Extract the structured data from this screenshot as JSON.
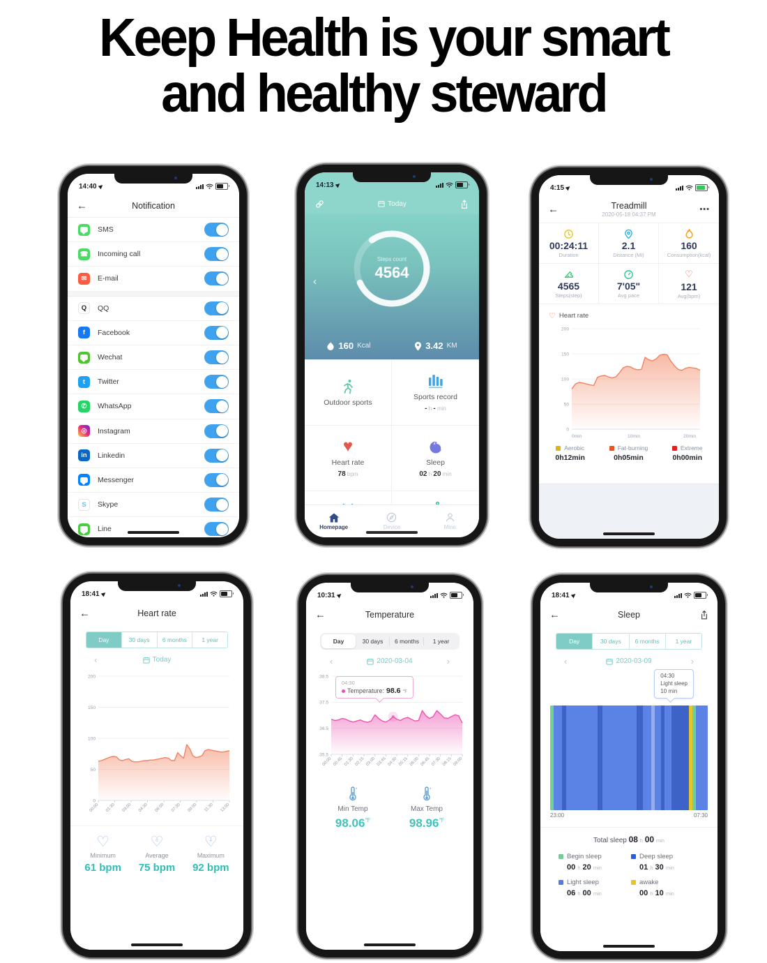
{
  "headline": {
    "line1": "Keep Health  is your smart",
    "line2": "and healthy steward"
  },
  "phones": {
    "notification": {
      "status_time": "14:40",
      "title": "Notification",
      "items": [
        {
          "label": "SMS",
          "icon": "sms-icon",
          "bg": "#4cd964",
          "shape": "bubble",
          "section_break": false
        },
        {
          "label": "Incoming call",
          "icon": "incoming-call-icon",
          "bg": "#4cd964",
          "glyph": "☎",
          "section_break": false
        },
        {
          "label": "E-mail",
          "icon": "email-icon",
          "bg": "#ff5b40",
          "glyph": "✉",
          "section_break": false
        },
        {
          "label": "QQ",
          "icon": "qq-icon",
          "bg": "#ffffff",
          "glyph": "Q",
          "glyph_color": "#222222",
          "section_break": true
        },
        {
          "label": "Facebook",
          "icon": "facebook-icon",
          "bg": "#1877f2",
          "glyph": "f",
          "section_break": false
        },
        {
          "label": "Wechat",
          "icon": "wechat-icon",
          "bg": "#51c332",
          "shape": "bubble",
          "section_break": false
        },
        {
          "label": "Twitter",
          "icon": "twitter-icon",
          "bg": "#1da1f2",
          "glyph": "t",
          "section_break": false
        },
        {
          "label": "WhatsApp",
          "icon": "whatsapp-icon",
          "bg": "#25d366",
          "glyph": "✆",
          "section_break": false
        },
        {
          "label": "Instagram",
          "icon": "instagram-icon",
          "bg": "linear-gradient(45deg,#f9ce34,#ee2a7b,#6228d7)",
          "glyph": "◎",
          "section_break": false
        },
        {
          "label": "Linkedin",
          "icon": "linkedin-icon",
          "bg": "#0a66c2",
          "glyph": "in",
          "section_break": false
        },
        {
          "label": "Messenger",
          "icon": "messenger-icon",
          "bg": "#0084ff",
          "shape": "bubble",
          "section_break": false
        },
        {
          "label": "Skype",
          "icon": "skype-icon",
          "bg": "#ffffff",
          "glyph": "S",
          "glyph_color": "#78bfe8",
          "section_break": false
        },
        {
          "label": "Line",
          "icon": "line-icon",
          "bg": "#4ccc45",
          "shape": "bubble",
          "section_break": false
        }
      ],
      "toggle_color": "#3ea2ef"
    },
    "home": {
      "status_time": "14:13",
      "header_label": "Today",
      "steps_label": "Steps count",
      "steps_value": "4564",
      "kcal_value": "160",
      "kcal_unit": "Kcal",
      "dist_value": "3.42",
      "dist_unit": "KM",
      "cells": [
        {
          "label": "Outdoor sports",
          "icon": "runner-icon"
        },
        {
          "label": "Sports record",
          "icon": "bar-chart-icon",
          "sub_h": "-",
          "sub_hu": "h",
          "sub_m": "-",
          "sub_mu": "min"
        },
        {
          "label": "Heart rate",
          "icon": "heart-icon",
          "value": "78",
          "unit": "bpm"
        },
        {
          "label": "Sleep",
          "icon": "moon-icon",
          "h": "02",
          "hu": "h",
          "m": "20",
          "mu": "min"
        },
        {
          "icon": "alarm-icon"
        },
        {
          "icon": "sedentary-icon"
        }
      ],
      "tabs": [
        {
          "label": "Homepage",
          "icon": "home-icon"
        },
        {
          "label": "Device",
          "icon": "compass-icon"
        },
        {
          "label": "Mine",
          "icon": "person-icon"
        }
      ]
    },
    "treadmill": {
      "status_time": "4:15",
      "title": "Treadmill",
      "subtitle": "2020-05-18 04:37 PM",
      "menu": "•••",
      "stats": [
        {
          "value": "00:24:11",
          "label": "Duration",
          "icon": "clock-icon",
          "color": "#e8c532"
        },
        {
          "value": "2.1",
          "label": "Distance (MI)",
          "icon": "pin-icon",
          "color": "#29b2e8"
        },
        {
          "value": "160",
          "label": "Consumption(kcal)",
          "icon": "flame-icon",
          "color": "#f0a02a"
        },
        {
          "value": "4565",
          "label": "Steps(step)",
          "icon": "steps-icon",
          "color": "#3ecb7e"
        },
        {
          "value": "7'05\"",
          "label": "Avg pace",
          "icon": "pace-icon",
          "color": "#37c99a"
        },
        {
          "value": "121",
          "label": "Avg(bpm)",
          "icon": "heart-outline-icon",
          "color": "#f05a4a"
        }
      ],
      "section_title": "Heart rate",
      "legend": [
        {
          "label": "Aerobic",
          "value": "0h12min",
          "color": "#e2b50c"
        },
        {
          "label": "Fat-burning",
          "value": "0h05min",
          "color": "#e8551a"
        },
        {
          "label": "Extreme",
          "value": "0h00min",
          "color": "#ea1c1c"
        }
      ]
    },
    "heart_rate": {
      "status_time": "18:41",
      "title": "Heart rate",
      "tabs": [
        "Day",
        "30 days",
        "6 months",
        "1 year"
      ],
      "date_label": "Today",
      "stats": [
        {
          "label": "Minimum",
          "value": "61 bpm",
          "icon": "heart-min-icon"
        },
        {
          "label": "Average",
          "value": "75 bpm",
          "icon": "heart-avg-icon",
          "overlay": "≈"
        },
        {
          "label": "Maximum",
          "value": "92 bpm",
          "icon": "heart-max-icon",
          "overlay": "+"
        }
      ]
    },
    "temperature": {
      "status_time": "10:31",
      "title": "Temperature",
      "tabs": [
        "Day",
        "30 days",
        "6 months",
        "1 year"
      ],
      "date": "2020-03-04",
      "stats": [
        {
          "label": "Min Temp",
          "value": "98.06",
          "unit": "℉",
          "icon": "thermometer-icon"
        },
        {
          "label": "Max Temp",
          "value": "98.96",
          "unit": "℉",
          "icon": "thermometer-icon"
        }
      ]
    },
    "sleep": {
      "status_time": "18:41",
      "title": "Sleep",
      "tabs": [
        "Day",
        "30 days",
        "6 months",
        "1 year"
      ],
      "date": "2020-03-09",
      "total_label": "Total sleep",
      "total_h": "08",
      "unit_h": "h",
      "total_m": "00",
      "unit_min": "min",
      "legend": [
        {
          "label": "Begin sleep",
          "h": "00",
          "m": "20",
          "color": "#6fcf97"
        },
        {
          "label": "Deep sleep",
          "h": "01",
          "m": "30",
          "color": "#2e5bd7"
        },
        {
          "label": "Light sleep",
          "h": "06",
          "m": "00",
          "color": "#4f7ce8"
        },
        {
          "label": "awake",
          "h": "00",
          "m": "10",
          "color": "#e8c520"
        }
      ]
    }
  },
  "chart_data": [
    {
      "id": "treadmill_hr",
      "type": "area",
      "title": "Heart rate",
      "ylabel": "bpm",
      "ylim": [
        0,
        200
      ],
      "yticks": [
        0,
        50,
        100,
        150,
        200
      ],
      "xticks": [
        {
          "label": "0min",
          "pos": 0.0
        },
        {
          "label": "10min",
          "pos": 0.435
        },
        {
          "label": "20min",
          "pos": 0.87
        }
      ],
      "color": "#f2825f",
      "grid": true,
      "legend_position": "bottom",
      "values": [
        80,
        90,
        93,
        92,
        90,
        88,
        87,
        103,
        106,
        107,
        104,
        102,
        104,
        112,
        122,
        125,
        124,
        120,
        118,
        119,
        143,
        138,
        136,
        140,
        147,
        149,
        148,
        136,
        126,
        119,
        117,
        121,
        123,
        122,
        121,
        117
      ]
    },
    {
      "id": "day_hr",
      "type": "area",
      "title": "Heart rate (Day)",
      "ylabel": "bpm",
      "ylim": [
        0,
        200
      ],
      "yticks": [
        0,
        50,
        100,
        150,
        200
      ],
      "xtick_labels": [
        "00:00",
        "01:30",
        "03:00",
        "04:30",
        "06:00",
        "07:30",
        "09:00",
        "11:30",
        "13:00"
      ],
      "color": "#f2825f",
      "grid": true,
      "rotate_labels": true,
      "values": [
        63,
        64,
        66,
        68,
        70,
        71,
        70,
        65,
        64,
        66,
        67,
        63,
        62,
        62,
        63,
        64,
        64,
        65,
        65,
        66,
        67,
        68,
        69,
        68,
        64,
        64,
        77,
        72,
        68,
        90,
        83,
        72,
        69,
        70,
        72,
        80,
        82,
        81,
        80,
        79,
        78,
        78,
        79,
        80
      ]
    },
    {
      "id": "temperature",
      "type": "area",
      "title": "Temperature (Day)",
      "ylabel": "°C",
      "ylim": [
        35.5,
        38.5
      ],
      "yticks": [
        35.5,
        36.5,
        37.5,
        38.5
      ],
      "xtick_labels": [
        "00:00",
        "00:45",
        "01:30",
        "02:15",
        "03:00",
        "03:45",
        "04:30",
        "05:15",
        "06:00",
        "06:45",
        "07:30",
        "08:15",
        "09:00"
      ],
      "color": "#ec54b0",
      "grid": true,
      "rotate_labels": true,
      "marker_pos": 0.47,
      "tooltip": {
        "time": "04:30",
        "label": "Temperature:",
        "value": "98.6",
        "unit": "℉"
      },
      "values": [
        36.85,
        36.8,
        36.82,
        36.88,
        36.85,
        36.78,
        36.74,
        36.78,
        36.82,
        36.76,
        36.73,
        36.78,
        37.02,
        36.88,
        36.78,
        36.74,
        36.82,
        36.95,
        36.85,
        36.8,
        36.88,
        36.92,
        36.85,
        36.78,
        36.8,
        37.18,
        36.98,
        36.88,
        36.95,
        37.18,
        37.05,
        36.9,
        36.88,
        36.95,
        37.02,
        36.98,
        36.7
      ]
    },
    {
      "id": "sleep_timeline",
      "type": "heatmap",
      "title": "Sleep (Day)",
      "xstart": "23:00",
      "xend": "07:30",
      "tooltip": {
        "time": "04:30",
        "label": "Light sleep",
        "value": "10 min"
      },
      "colors": {
        "begin": "#70cf97",
        "light": "#5b83e6",
        "deep": "#3d63c9",
        "awake": "#e3c62c",
        "highlight": "#93adf0"
      },
      "segments": [
        [
          "begin",
          2
        ],
        [
          "light",
          5.5
        ],
        [
          "deep",
          2.5
        ],
        [
          "light",
          20
        ],
        [
          "deep",
          3
        ],
        [
          "light",
          22
        ],
        [
          "deep",
          4
        ],
        [
          "light",
          5
        ],
        [
          "highlight",
          2.5
        ],
        [
          "light",
          4
        ],
        [
          "deep",
          2
        ],
        [
          "light",
          4.5
        ],
        [
          "deep",
          11
        ],
        [
          "awake",
          2.5
        ],
        [
          "begin",
          2
        ],
        [
          "light",
          7.5
        ]
      ]
    }
  ]
}
